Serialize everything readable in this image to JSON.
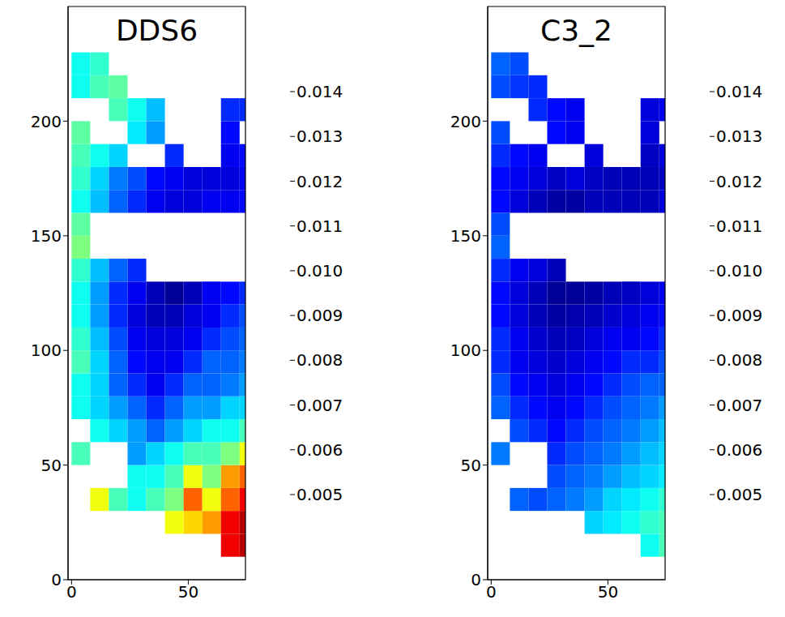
{
  "chart_data": [
    {
      "type": "heatmap",
      "title": "DDS6",
      "xlim": [
        -1.5,
        74.5
      ],
      "ylim": [
        0,
        250
      ],
      "xticks": [
        0,
        50
      ],
      "yticks": [
        0,
        50,
        100,
        150,
        200
      ],
      "x_edges": [
        0,
        8,
        16,
        24,
        32,
        40,
        48,
        56,
        64,
        72,
        80
      ],
      "y_edges": [
        0,
        10,
        20,
        30,
        40,
        50,
        60,
        70,
        80,
        90,
        100,
        110,
        120,
        130,
        140,
        150,
        160,
        170,
        180,
        190,
        200,
        210,
        220,
        230,
        240
      ],
      "cells": [
        [
          null,
          null,
          null,
          null,
          null,
          null,
          null,
          null,
          null,
          null
        ],
        [
          null,
          null,
          null,
          null,
          null,
          null,
          null,
          null,
          0.013,
          0.0135
        ],
        [
          null,
          null,
          null,
          null,
          null,
          0.0105,
          0.011,
          0.0115,
          0.013,
          0.0135
        ],
        [
          null,
          0.0105,
          0.009,
          0.0085,
          0.009,
          0.0095,
          0.012,
          0.0105,
          0.012,
          0.013
        ],
        [
          null,
          null,
          null,
          0.0085,
          0.0085,
          0.009,
          0.0105,
          0.0095,
          0.0115,
          0.012
        ],
        [
          0.009,
          null,
          null,
          0.0075,
          0.008,
          0.0085,
          0.009,
          0.009,
          0.0095,
          0.0105
        ],
        [
          null,
          0.0085,
          0.008,
          0.0075,
          0.007,
          0.0075,
          0.008,
          0.0085,
          0.0085,
          0.009
        ],
        [
          0.0085,
          0.008,
          0.0075,
          0.007,
          0.0065,
          0.007,
          0.0075,
          0.0075,
          0.008,
          0.008
        ],
        [
          0.0085,
          0.008,
          0.007,
          0.0065,
          0.006,
          0.0065,
          0.007,
          0.007,
          0.0072,
          0.0075
        ],
        [
          0.009,
          0.008,
          0.007,
          0.0062,
          0.006,
          0.006,
          0.0065,
          0.007,
          0.007,
          0.0072
        ],
        [
          0.0088,
          0.0078,
          0.0068,
          0.006,
          0.0058,
          0.0058,
          0.006,
          0.0065,
          0.0068,
          0.007
        ],
        [
          0.0085,
          0.0075,
          0.0065,
          0.0058,
          0.0055,
          0.0055,
          0.0058,
          0.006,
          0.0065,
          0.0068
        ],
        [
          0.0085,
          0.0075,
          0.0065,
          0.006,
          0.0055,
          0.0052,
          0.0055,
          0.006,
          0.0062,
          0.0065
        ],
        [
          0.0088,
          0.0078,
          0.007,
          0.0065,
          null,
          null,
          null,
          null,
          null,
          null
        ],
        [
          0.0095,
          null,
          null,
          null,
          null,
          null,
          null,
          null,
          null,
          null
        ],
        [
          0.0092,
          null,
          null,
          null,
          null,
          null,
          null,
          null,
          null,
          null
        ],
        [
          0.0085,
          0.0078,
          0.007,
          0.0065,
          0.006,
          0.0058,
          0.0058,
          0.006,
          0.006,
          0.0062
        ],
        [
          0.0088,
          0.008,
          0.0072,
          0.0068,
          0.0062,
          0.006,
          0.0058,
          0.0058,
          0.0058,
          0.006
        ],
        [
          0.009,
          0.0085,
          0.008,
          null,
          null,
          0.0065,
          null,
          null,
          0.006,
          0.0062
        ],
        [
          0.0092,
          null,
          null,
          0.0082,
          0.0075,
          null,
          null,
          null,
          0.0062,
          null
        ],
        [
          null,
          null,
          0.009,
          0.0085,
          0.0078,
          null,
          null,
          null,
          0.0065,
          0.0065
        ],
        [
          0.0085,
          0.009,
          0.0092,
          null,
          null,
          null,
          null,
          null,
          null,
          null
        ],
        [
          0.0085,
          0.0088,
          null,
          null,
          null,
          null,
          null,
          null,
          null,
          null
        ],
        [
          null,
          null,
          null,
          null,
          null,
          null,
          null,
          null,
          null,
          null
        ]
      ],
      "colorbar_range": [
        0.005,
        0.014
      ],
      "colorbar_ticks": [
        0.005,
        0.006,
        0.007,
        0.008,
        0.009,
        {
          "value": 0.01,
          "label": "0.010"
        },
        0.011,
        0.012,
        0.013,
        0.014
      ]
    },
    {
      "type": "heatmap",
      "title": "C3_2",
      "xlim": [
        -1.5,
        74.5
      ],
      "ylim": [
        0,
        250
      ],
      "xticks": [
        0,
        50
      ],
      "yticks": [
        0,
        50,
        100,
        150,
        200
      ],
      "x_edges": [
        0,
        8,
        16,
        24,
        32,
        40,
        48,
        56,
        64,
        72,
        80
      ],
      "y_edges": [
        0,
        10,
        20,
        30,
        40,
        50,
        60,
        70,
        80,
        90,
        100,
        110,
        120,
        130,
        140,
        150,
        160,
        170,
        180,
        190,
        200,
        210,
        220,
        230,
        240
      ],
      "cells": [
        [
          null,
          null,
          null,
          null,
          null,
          null,
          null,
          null,
          null,
          null
        ],
        [
          null,
          null,
          null,
          null,
          null,
          null,
          null,
          null,
          0.0085,
          0.009
        ],
        [
          null,
          null,
          null,
          null,
          null,
          0.008,
          0.0082,
          0.0085,
          0.0088,
          0.009
        ],
        [
          null,
          0.007,
          0.0068,
          0.007,
          0.0072,
          0.0075,
          0.008,
          0.0082,
          0.0085,
          0.0088
        ],
        [
          null,
          null,
          null,
          0.0068,
          0.007,
          0.0072,
          0.0075,
          0.0078,
          0.008,
          0.0082
        ],
        [
          0.0072,
          null,
          null,
          0.0065,
          0.0068,
          0.007,
          0.0072,
          0.0075,
          0.0078,
          0.008
        ],
        [
          null,
          0.0068,
          0.0065,
          0.0062,
          0.0065,
          0.0068,
          0.007,
          0.0072,
          0.0075,
          0.0078
        ],
        [
          0.007,
          0.0065,
          0.0062,
          0.006,
          0.0062,
          0.0065,
          0.0068,
          0.007,
          0.0072,
          0.0075
        ],
        [
          0.0068,
          0.0062,
          0.006,
          0.0058,
          0.006,
          0.0062,
          0.0065,
          0.0068,
          0.007,
          0.007
        ],
        [
          0.0065,
          0.006,
          0.0058,
          0.0057,
          0.0058,
          0.006,
          0.0062,
          0.0065,
          0.0065,
          0.0068
        ],
        [
          0.0065,
          0.006,
          0.0057,
          0.0055,
          0.0056,
          0.0058,
          0.006,
          0.006,
          0.0062,
          0.0065
        ],
        [
          0.0062,
          0.0058,
          0.0055,
          0.0053,
          0.0054,
          0.0055,
          0.0057,
          0.0058,
          0.006,
          0.0062
        ],
        [
          0.0062,
          0.0058,
          0.0055,
          0.0052,
          0.0052,
          0.0053,
          0.0055,
          0.0056,
          0.0058,
          0.006
        ],
        [
          0.0065,
          0.006,
          0.0058,
          0.0055,
          null,
          null,
          null,
          null,
          null,
          null
        ],
        [
          0.007,
          null,
          null,
          null,
          null,
          null,
          null,
          null,
          null,
          null
        ],
        [
          0.0068,
          null,
          null,
          null,
          null,
          null,
          null,
          null,
          null,
          null
        ],
        [
          0.0062,
          0.0058,
          0.0055,
          0.0053,
          0.0053,
          0.0055,
          0.0055,
          0.0055,
          0.0055,
          0.0058
        ],
        [
          0.0062,
          0.006,
          0.0058,
          0.0056,
          0.0058,
          0.0056,
          0.0055,
          0.0055,
          0.0055,
          0.0056
        ],
        [
          0.0065,
          0.0062,
          0.006,
          null,
          null,
          0.0058,
          null,
          null,
          0.0056,
          0.0058
        ],
        [
          0.0068,
          null,
          null,
          0.0062,
          0.006,
          null,
          null,
          null,
          0.0058,
          null
        ],
        [
          null,
          null,
          0.0065,
          0.0062,
          0.006,
          null,
          null,
          null,
          0.0058,
          0.006
        ],
        [
          0.0068,
          0.0066,
          0.0065,
          null,
          null,
          null,
          null,
          null,
          null,
          null
        ],
        [
          0.007,
          0.0068,
          null,
          null,
          null,
          null,
          null,
          null,
          null,
          null
        ],
        [
          null,
          null,
          null,
          null,
          null,
          null,
          null,
          null,
          null,
          null
        ]
      ],
      "colorbar_range": [
        0.005,
        0.014
      ],
      "colorbar_ticks": [
        0.005,
        0.006,
        0.007,
        0.008,
        0.009,
        {
          "value": 0.01,
          "label": "0.010"
        },
        0.011,
        0.012,
        0.013,
        0.014
      ]
    }
  ]
}
